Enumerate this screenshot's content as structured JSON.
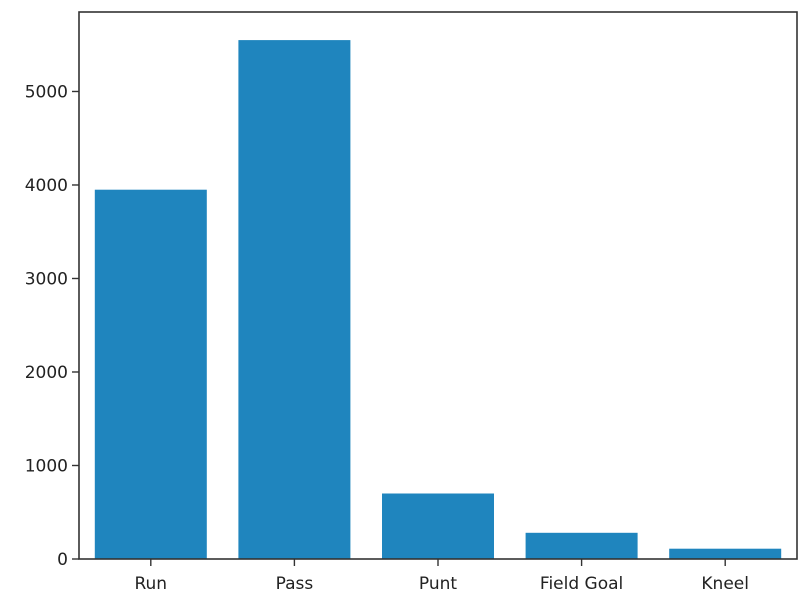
{
  "chart_data": {
    "type": "bar",
    "title": "",
    "xlabel": "",
    "ylabel": "",
    "categories": [
      "Run",
      "Pass",
      "Punt",
      "Field Goal",
      "Kneel"
    ],
    "values": [
      3950,
      5550,
      700,
      280,
      110
    ],
    "ylim": [
      0,
      5850
    ],
    "yticks": [
      0,
      1000,
      2000,
      3000,
      4000,
      5000
    ],
    "bar_color": "#1f85be",
    "axis_color": "#333333",
    "grid": false,
    "legend": "none"
  }
}
